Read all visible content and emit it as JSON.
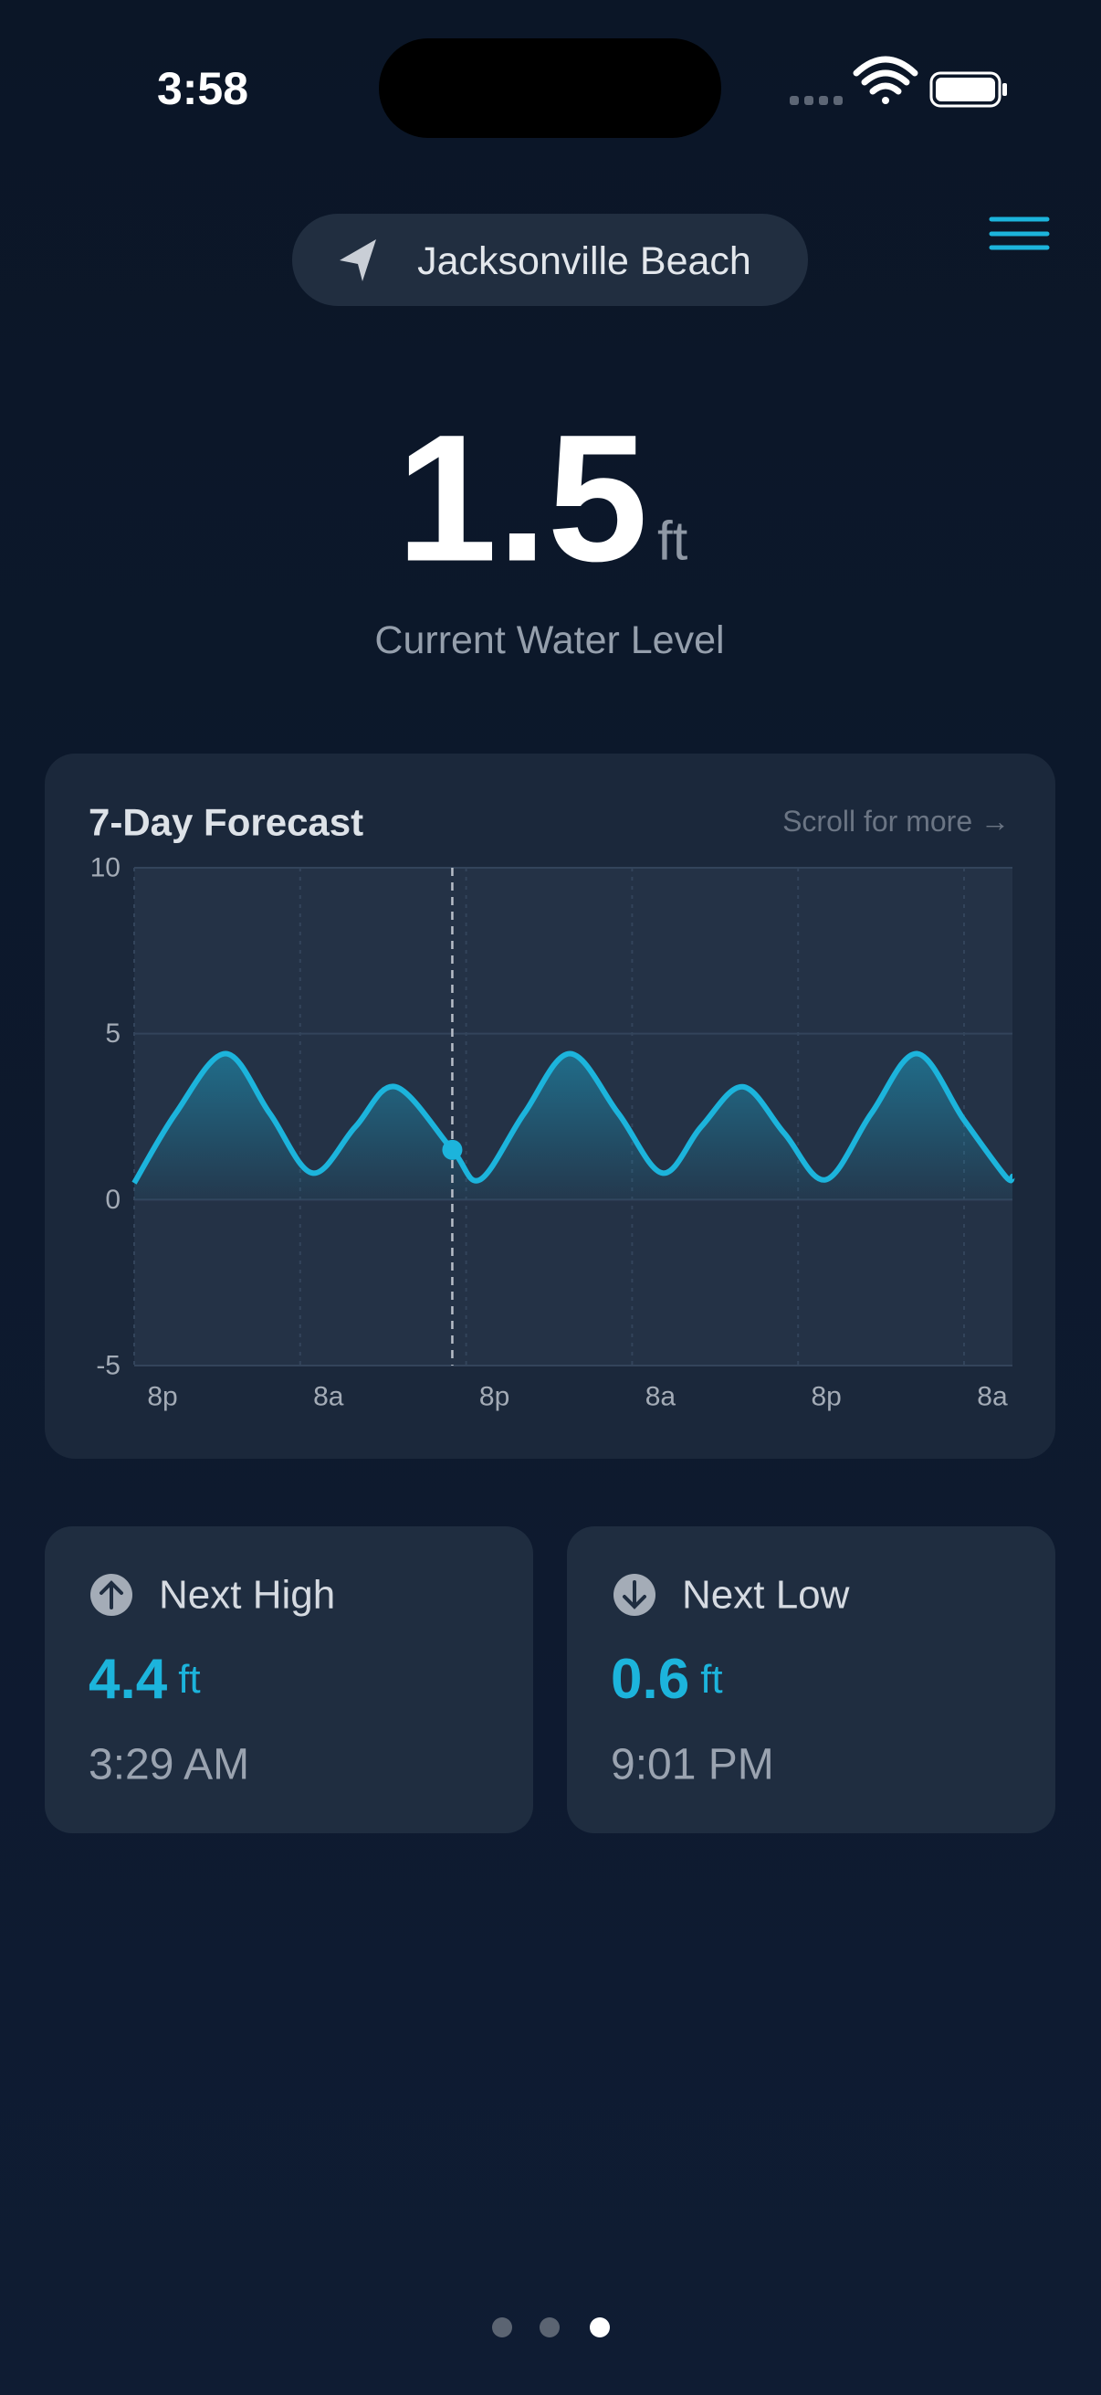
{
  "status_bar": {
    "time": "3:58"
  },
  "location": "Jacksonville Beach",
  "current": {
    "value": 1.5,
    "unit": "ft",
    "label": "Current Water Level"
  },
  "forecast": {
    "title": "7-Day Forecast",
    "hint": "Scroll for more →",
    "chart_data": {
      "type": "line",
      "x": [
        0,
        3,
        6.6,
        9.8,
        12.9,
        16,
        18.9,
        23,
        25,
        28.2,
        31.5,
        35,
        38.2,
        41,
        44,
        47,
        50,
        53.3,
        56.6,
        60,
        63,
        63.5
      ],
      "series": [
        {
          "color": "#1cb4dc",
          "values": [
            0.5,
            2.6,
            4.4,
            2.6,
            0.8,
            2.2,
            3.4,
            1.5,
            0.6,
            2.6,
            4.4,
            2.6,
            0.8,
            2.2,
            3.4,
            2.0,
            0.6,
            2.6,
            4.4,
            2.4,
            0.7,
            0.7
          ]
        }
      ],
      "current_index": 7,
      "xlim": [
        0,
        63.5
      ],
      "xticks": [
        {
          "value": 0,
          "label": "8p"
        },
        {
          "value": 12,
          "label": "8a"
        },
        {
          "value": 24,
          "label": "8p"
        },
        {
          "value": 36,
          "label": "8a"
        },
        {
          "value": 48,
          "label": "8p"
        },
        {
          "value": 60,
          "label": "8a"
        }
      ],
      "ylim": [
        -5,
        10
      ],
      "yticks": [
        -5,
        0,
        5,
        10
      ],
      "grid": true
    }
  },
  "next_high": {
    "label": "Next High",
    "value": 4.4,
    "unit": "ft",
    "time": "3:29 AM"
  },
  "next_low": {
    "label": "Next Low",
    "value": 0.6,
    "unit": "ft",
    "time": "9:01 PM"
  }
}
